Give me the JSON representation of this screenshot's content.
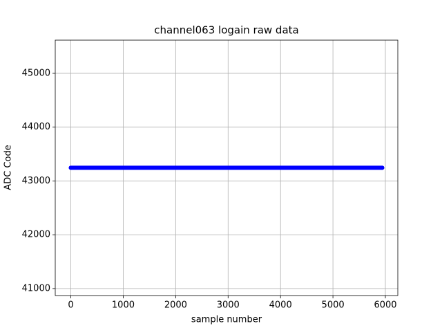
{
  "chart_data": {
    "type": "line",
    "title": "channel063 logain raw data",
    "x_label": "sample number",
    "y_label": "ADC Code",
    "x": [
      0,
      5940
    ],
    "series": [
      {
        "color": "#0000ff",
        "values": [
          43245,
          43245
        ]
      }
    ],
    "xlim": [
      -297,
      6237
    ],
    "xticks": [
      0,
      1000,
      2000,
      3000,
      4000,
      5000,
      6000
    ],
    "ylim": [
      40870,
      45617
    ],
    "yticks": [
      41000,
      42000,
      43000,
      44000,
      45000
    ],
    "grid": true
  }
}
